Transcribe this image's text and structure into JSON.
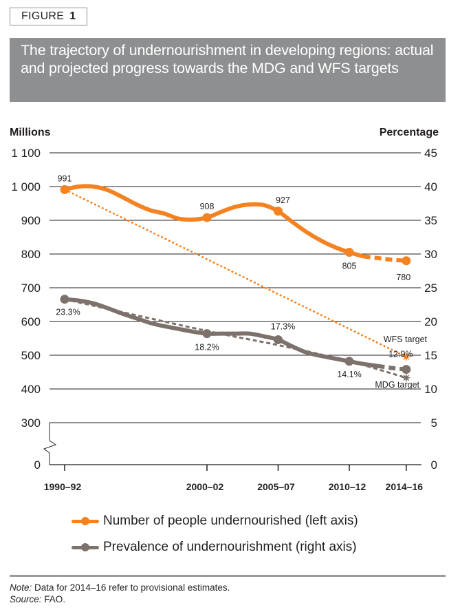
{
  "figure_label": {
    "word": "FIGURE",
    "number": "1"
  },
  "title": "The trajectory of undernourishment in developing regions: actual and projected progress towards the MDG and WFS targets",
  "chart_data": {
    "type": "line",
    "left_axis": {
      "label": "Millions",
      "ticks": [
        0,
        300,
        400,
        500,
        600,
        700,
        800,
        900,
        1000,
        1100
      ],
      "tick_labels": [
        "0",
        "300",
        "400",
        "500",
        "600",
        "700",
        "800",
        "900",
        "1 000",
        "1 100"
      ],
      "axis_break": "between 0 and 300"
    },
    "right_axis": {
      "label": "Percentage",
      "ticks": [
        0,
        5,
        10,
        15,
        20,
        25,
        30,
        35,
        40,
        45
      ],
      "tick_labels": [
        "0",
        "5",
        "10",
        "15",
        "20",
        "25",
        "30",
        "35",
        "40",
        "45"
      ]
    },
    "x_ticks": [
      1991,
      2001,
      2006,
      2011,
      2015
    ],
    "x_tick_labels": [
      "1990–92",
      "2000–02",
      "2005–07",
      "2010–12",
      "2014–16"
    ],
    "grid": true,
    "colors": {
      "number": "#f58220",
      "prevalence": "#7d716b"
    },
    "series": [
      {
        "name": "Number of people undernourished (left axis)",
        "axis": "left",
        "color": "#f58220",
        "x": [
          1991,
          1992,
          1993,
          1994,
          1995,
          1996,
          1997,
          1998,
          1999,
          2000,
          2001,
          2002,
          2003,
          2004,
          2005,
          2006,
          2007,
          2008,
          2009,
          2010,
          2011,
          2012,
          2013,
          2014,
          2015
        ],
        "y": [
          991,
          1000,
          1000,
          990,
          970,
          948,
          930,
          920,
          905,
          902,
          908,
          925,
          940,
          947,
          945,
          927,
          895,
          865,
          840,
          820,
          805,
          793,
          788,
          783,
          780
        ],
        "dashed_from": 2012,
        "labeled_points": [
          {
            "x": 1991,
            "label": "991"
          },
          {
            "x": 2001,
            "label": "908"
          },
          {
            "x": 2006,
            "label": "927"
          },
          {
            "x": 2011,
            "label": "805"
          },
          {
            "x": 2015,
            "label": "780"
          }
        ]
      },
      {
        "name": "Prevalence of undernourishment (right axis)",
        "axis": "right",
        "color": "#7d716b",
        "x": [
          1991,
          1992,
          1993,
          1994,
          1995,
          1996,
          1997,
          1998,
          1999,
          2000,
          2001,
          2002,
          2003,
          2004,
          2005,
          2006,
          2007,
          2008,
          2009,
          2010,
          2011,
          2012,
          2013,
          2014,
          2015
        ],
        "y": [
          23.3,
          23.1,
          22.7,
          22.0,
          21.2,
          20.5,
          19.8,
          19.3,
          18.9,
          18.5,
          18.2,
          18.2,
          18.2,
          18.2,
          17.8,
          17.3,
          16.3,
          15.4,
          14.9,
          14.5,
          14.1,
          13.7,
          13.4,
          13.1,
          12.9
        ],
        "dashed_from": 2013,
        "labeled_points": [
          {
            "x": 1991,
            "label": "23.3%"
          },
          {
            "x": 2001,
            "label": "18.2%"
          },
          {
            "x": 2006,
            "label": "17.3%"
          },
          {
            "x": 2011,
            "label": "14.1%"
          },
          {
            "x": 2015,
            "label": "12.9%"
          }
        ]
      }
    ],
    "targets": [
      {
        "label": "WFS target",
        "axis": "left",
        "color": "#f58220",
        "x": [
          1991,
          2015
        ],
        "y": [
          991,
          495.5
        ]
      },
      {
        "label": "MDG target",
        "axis": "right",
        "color": "#7d716b",
        "x": [
          1991,
          2001,
          2006,
          2011,
          2015
        ],
        "y": [
          23.3,
          18.6,
          16.5,
          14.1,
          11.65
        ]
      }
    ]
  },
  "legend": [
    {
      "label": "Number of people undernourished (left axis)",
      "color": "#f58220"
    },
    {
      "label": "Prevalence of undernourishment (right axis)",
      "color": "#7d716b"
    }
  ],
  "note": {
    "label": "Note:",
    "text": " Data for 2014–16 refer to provisional estimates."
  },
  "source": {
    "label": "Source:",
    "text": " FAO."
  }
}
